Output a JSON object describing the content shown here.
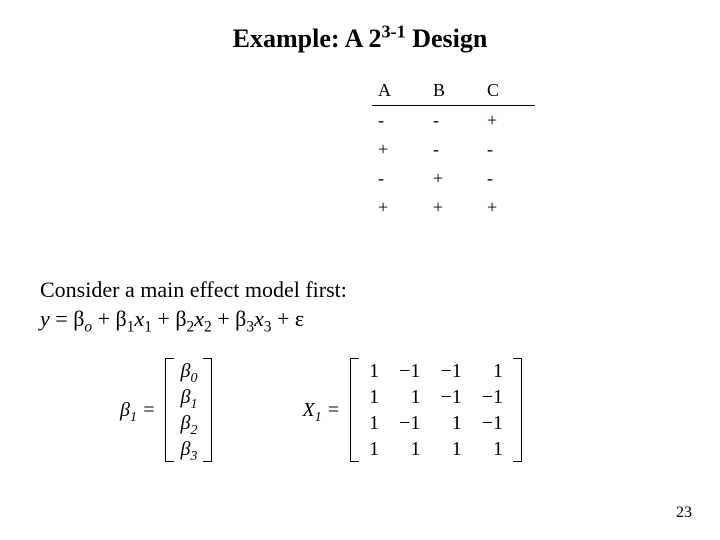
{
  "title": {
    "prefix": "Example: A 2",
    "exponent": "3-1",
    "suffix": " Design",
    "fontsize": 26,
    "fontweight": "bold"
  },
  "design_table": {
    "columns": [
      "A",
      "B",
      "C"
    ],
    "rows": [
      [
        "-",
        "-",
        "+"
      ],
      [
        "+",
        "-",
        "-"
      ],
      [
        "-",
        "+",
        "-"
      ],
      [
        "+",
        "+",
        "+"
      ]
    ],
    "fontsize": 18,
    "header_border_color": "#000000"
  },
  "body": {
    "line1": "Consider a main effect model first:",
    "eq": {
      "y": "y",
      "eqs": " = ",
      "b": "β",
      "sub0": "o",
      "plus": " + ",
      "sub1": "1",
      "x1": "x",
      "sub2": "2",
      "sub3": "3",
      "eps": "ε"
    },
    "fontsize": 22
  },
  "beta_matrix": {
    "label_prefix": "β",
    "label_sub": "1",
    "label_eq": " = ",
    "rows": [
      [
        "β",
        "0"
      ],
      [
        "β",
        "1"
      ],
      [
        "β",
        "2"
      ],
      [
        "β",
        "3"
      ]
    ]
  },
  "x_matrix": {
    "label_prefix": "X",
    "label_sub": "1",
    "label_eq": " = ",
    "rows": [
      [
        "1",
        "−1",
        "−1",
        "1"
      ],
      [
        "1",
        "1",
        "−1",
        "−1"
      ],
      [
        "1",
        "−1",
        "1",
        "−1"
      ],
      [
        "1",
        "1",
        "1",
        "1"
      ]
    ]
  },
  "page_number": "23",
  "colors": {
    "text": "#000000",
    "background": "#ffffff"
  }
}
